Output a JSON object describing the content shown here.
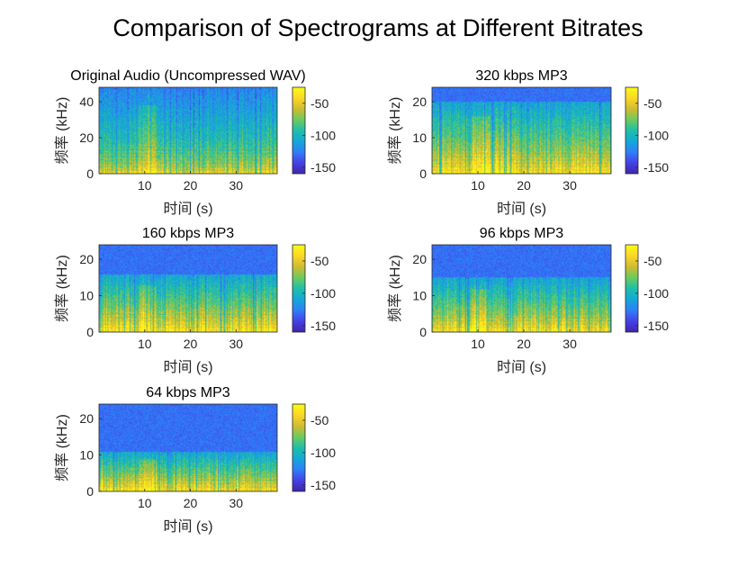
{
  "title": "Comparison of Spectrograms at Different Bitrates",
  "colormap": [
    "#3e26a8",
    "#4640e8",
    "#2f7ff9",
    "#13a8d8",
    "#1ebfa9",
    "#6ccb5d",
    "#d1bb31",
    "#fbd726",
    "#f9fb14"
  ],
  "chart_data": [
    {
      "type": "heatmap",
      "title": "Original Audio (Uncompressed WAV)",
      "xlabel": "时间 (s)",
      "ylabel": "频率 (kHz)",
      "xlim": [
        0,
        39
      ],
      "ylim": [
        0,
        48
      ],
      "xticks": [
        10,
        20,
        30
      ],
      "yticks": [
        0,
        20,
        40
      ],
      "colorbar": {
        "ticks": [
          -50,
          -100,
          -150
        ],
        "range": [
          -160,
          -25
        ]
      },
      "cutoff_khz": 48
    },
    {
      "type": "heatmap",
      "title": "320 kbps MP3",
      "xlabel": "时间 (s)",
      "ylabel": "频率 (kHz)",
      "xlim": [
        0,
        39
      ],
      "ylim": [
        0,
        24
      ],
      "xticks": [
        10,
        20,
        30
      ],
      "yticks": [
        0,
        10,
        20
      ],
      "colorbar": {
        "ticks": [
          -50,
          -100,
          -150
        ],
        "range": [
          -160,
          -25
        ]
      },
      "cutoff_khz": 20
    },
    {
      "type": "heatmap",
      "title": "160 kbps MP3",
      "xlabel": "时间 (s)",
      "ylabel": "频率 (kHz)",
      "xlim": [
        0,
        39
      ],
      "ylim": [
        0,
        24
      ],
      "xticks": [
        10,
        20,
        30
      ],
      "yticks": [
        0,
        10,
        20
      ],
      "colorbar": {
        "ticks": [
          -50,
          -100,
          -150
        ],
        "range": [
          -160,
          -25
        ]
      },
      "cutoff_khz": 16
    },
    {
      "type": "heatmap",
      "title": "96 kbps MP3",
      "xlabel": "时间 (s)",
      "ylabel": "频率 (kHz)",
      "xlim": [
        0,
        39
      ],
      "ylim": [
        0,
        24
      ],
      "xticks": [
        10,
        20,
        30
      ],
      "yticks": [
        0,
        10,
        20
      ],
      "colorbar": {
        "ticks": [
          -50,
          -100,
          -150
        ],
        "range": [
          -160,
          -25
        ]
      },
      "cutoff_khz": 15
    },
    {
      "type": "heatmap",
      "title": "64 kbps MP3",
      "xlabel": "时间 (s)",
      "ylabel": "频率 (kHz)",
      "xlim": [
        0,
        39
      ],
      "ylim": [
        0,
        24
      ],
      "xticks": [
        10,
        20,
        30
      ],
      "yticks": [
        0,
        10,
        20
      ],
      "colorbar": {
        "ticks": [
          -50,
          -100,
          -150
        ],
        "range": [
          -160,
          -25
        ]
      },
      "cutoff_khz": 11
    }
  ]
}
